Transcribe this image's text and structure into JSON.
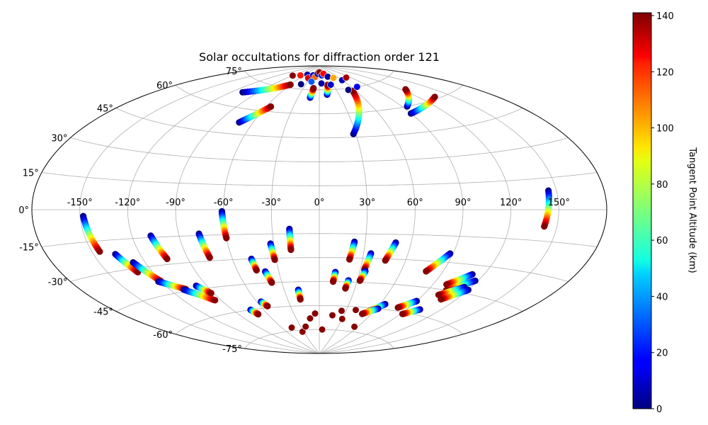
{
  "chart_data": {
    "type": "scatter",
    "projection": "aitoff",
    "title": "Solar occultations for diffraction order 121",
    "grid": true,
    "lon_ticks": [
      -150,
      -120,
      -90,
      -60,
      -30,
      0,
      30,
      60,
      90,
      120,
      150
    ],
    "lon_tick_labels": [
      "-150°",
      "-120°",
      "-90°",
      "-60°",
      "-30°",
      "0°",
      "30°",
      "60°",
      "90°",
      "120°",
      "150°"
    ],
    "lat_ticks": [
      75,
      60,
      45,
      30,
      15,
      0,
      -15,
      -30,
      -45,
      -60,
      -75
    ],
    "lat_tick_labels": [
      "75°",
      "60°",
      "45°",
      "30°",
      "15°",
      "0°",
      "-15°",
      "-30°",
      "-45°",
      "-60°",
      "-75°"
    ],
    "colorbar": {
      "label": "Tangent Point Altitude (km)",
      "min": 0,
      "max": 141,
      "ticks": [
        0,
        20,
        40,
        60,
        80,
        100,
        120,
        140
      ],
      "tick_labels": [
        "0",
        "20",
        "40",
        "60",
        "80",
        "100",
        "120",
        "140"
      ],
      "colormap": "jet"
    },
    "tracks": [
      {
        "lon": [
          -148,
          -145
        ],
        "lat": [
          -3,
          -20
        ],
        "alt": [
          0,
          140
        ]
      },
      {
        "lon": [
          -136,
          -130
        ],
        "lat": [
          -22,
          -32
        ],
        "alt": [
          0,
          140
        ]
      },
      {
        "lon": [
          -128,
          -120
        ],
        "lat": [
          -27,
          -38
        ],
        "alt": [
          0,
          140
        ]
      },
      {
        "lon": [
          -122,
          -108
        ],
        "lat": [
          -38,
          -44
        ],
        "alt": [
          0,
          140
        ]
      },
      {
        "lon": [
          -110,
          -95
        ],
        "lat": [
          -44,
          -52
        ],
        "alt": [
          0,
          140
        ]
      },
      {
        "lon": [
          -98,
          -92
        ],
        "lat": [
          -43,
          -48
        ],
        "alt": [
          0,
          140
        ]
      },
      {
        "lon": [
          -108,
          -104
        ],
        "lat": [
          -14,
          -27
        ],
        "alt": [
          0,
          140
        ]
      },
      {
        "lon": [
          -77,
          -75
        ],
        "lat": [
          -14,
          -28
        ],
        "alt": [
          0,
          140
        ]
      },
      {
        "lon": [
          -61,
          -60
        ],
        "lat": [
          -1,
          -17
        ],
        "alt": [
          0,
          140
        ]
      },
      {
        "lon": [
          -73,
          -70
        ],
        "lat": [
          -60,
          -63
        ],
        "alt": [
          0,
          140
        ]
      },
      {
        "lon": [
          -56,
          -53
        ],
        "lat": [
          -56,
          -59
        ],
        "alt": [
          0,
          140
        ]
      },
      {
        "lon": [
          -47,
          -46
        ],
        "lat": [
          -30,
          -37
        ],
        "alt": [
          0,
          140
        ]
      },
      {
        "lon": [
          -40,
          -38
        ],
        "lat": [
          -38,
          -45
        ],
        "alt": [
          0,
          140
        ]
      },
      {
        "lon": [
          -32,
          -31
        ],
        "lat": [
          -21,
          -31
        ],
        "alt": [
          0,
          140
        ]
      },
      {
        "lon": [
          -19,
          -19
        ],
        "lat": [
          -12,
          -25
        ],
        "alt": [
          0,
          140
        ]
      },
      {
        "lon": [
          -18,
          -18
        ],
        "lat": [
          -50,
          -56
        ],
        "alt": [
          0,
          140
        ]
      },
      {
        "lon": [
          23,
          21
        ],
        "lat": [
          -20,
          -31
        ],
        "alt": [
          0,
          140
        ]
      },
      {
        "lon": [
          12,
          11
        ],
        "lat": [
          -39,
          -45
        ],
        "alt": [
          0,
          140
        ]
      },
      {
        "lon": [
          23,
          22
        ],
        "lat": [
          -44,
          -49
        ],
        "alt": [
          0,
          140
        ]
      },
      {
        "lon": [
          35,
          33
        ],
        "lat": [
          -27,
          -37
        ],
        "alt": [
          0,
          140
        ]
      },
      {
        "lon": [
          34,
          32
        ],
        "lat": [
          -38,
          -44
        ],
        "alt": [
          0,
          140
        ]
      },
      {
        "lon": [
          50,
          46
        ],
        "lat": [
          -20,
          -31
        ],
        "alt": [
          0,
          140
        ]
      },
      {
        "lon": [
          88,
          78
        ],
        "lat": [
          -25,
          -36
        ],
        "alt": [
          0,
          140
        ]
      },
      {
        "lon": [
          112,
          100
        ],
        "lat": [
          -35,
          -42
        ],
        "alt": [
          0,
          140
        ]
      },
      {
        "lon": [
          118,
          104
        ],
        "lat": [
          -38,
          -45
        ],
        "alt": [
          0,
          140
        ]
      },
      {
        "lon": [
          115,
          102
        ],
        "lat": [
          -42,
          -48
        ],
        "alt": [
          0,
          140
        ]
      },
      {
        "lon": [
          120,
          108
        ],
        "lat": [
          -43,
          -50
        ],
        "alt": [
          0,
          140
        ]
      },
      {
        "lon": [
          90,
          80
        ],
        "lat": [
          -53,
          -58
        ],
        "alt": [
          0,
          140
        ]
      },
      {
        "lon": [
          102,
          92
        ],
        "lat": [
          -57,
          -61
        ],
        "alt": [
          0,
          140
        ]
      },
      {
        "lon": [
          65,
          55
        ],
        "lat": [
          -57,
          -62
        ],
        "alt": [
          0,
          140
        ]
      },
      {
        "lon": [
          62,
          50
        ],
        "lat": [
          -60,
          -64
        ],
        "alt": [
          0,
          140
        ]
      },
      {
        "lon": [
          145,
          142
        ],
        "lat": [
          9,
          -8
        ],
        "alt": [
          0,
          140
        ]
      },
      {
        "lon": [
          -108,
          -60
        ],
        "lat": [
          68,
          77
        ],
        "alt": [
          0,
          140
        ]
      },
      {
        "lon": [
          -72,
          -55
        ],
        "lat": [
          52,
          63
        ],
        "alt": [
          0,
          140
        ]
      },
      {
        "lon": [
          -13,
          -11
        ],
        "lat": [
          70,
          76
        ],
        "alt": [
          0,
          140
        ]
      },
      {
        "lon": [
          12,
          18
        ],
        "lat": [
          72,
          78
        ],
        "alt": [
          0,
          140
        ]
      },
      {
        "lon": [
          28,
          55
        ],
        "lat": [
          47,
          73
        ],
        "alt": [
          0,
          140
        ]
      },
      {
        "lon": [
          95,
          125
        ],
        "lat": [
          60,
          68
        ],
        "alt": [
          0,
          140
        ]
      },
      {
        "lon": [
          90,
          135
        ],
        "lat": [
          56,
          61
        ],
        "alt": [
          0,
          140
        ]
      }
    ],
    "points": [
      {
        "lon": -90,
        "lat": 82,
        "alt": 140
      },
      {
        "lon": -70,
        "lat": 83,
        "alt": 120
      },
      {
        "lon": -50,
        "lat": 84,
        "alt": 5
      },
      {
        "lon": -35,
        "lat": 82,
        "alt": 130
      },
      {
        "lon": -25,
        "lat": 84,
        "alt": 10
      },
      {
        "lon": -15,
        "lat": 83,
        "alt": 110
      },
      {
        "lon": -8,
        "lat": 85,
        "alt": 0
      },
      {
        "lon": 0,
        "lat": 86,
        "alt": 140
      },
      {
        "lon": 10,
        "lat": 84,
        "alt": 20
      },
      {
        "lon": 20,
        "lat": 85,
        "alt": 125
      },
      {
        "lon": 30,
        "lat": 83,
        "alt": 5
      },
      {
        "lon": 45,
        "lat": 82,
        "alt": 100
      },
      {
        "lon": 60,
        "lat": 80,
        "alt": 8
      },
      {
        "lon": 80,
        "lat": 81,
        "alt": 135
      },
      {
        "lon": -40,
        "lat": 78,
        "alt": 0
      },
      {
        "lon": -20,
        "lat": 80,
        "alt": 30
      },
      {
        "lon": 5,
        "lat": 79,
        "alt": 5
      },
      {
        "lon": 25,
        "lat": 78,
        "alt": 10
      },
      {
        "lon": 50,
        "lat": 74,
        "alt": 0
      },
      {
        "lon": 70,
        "lat": 75,
        "alt": 15
      },
      {
        "lon": -45,
        "lat": -73,
        "alt": 140
      },
      {
        "lon": -32,
        "lat": -76,
        "alt": 140
      },
      {
        "lon": -22,
        "lat": -73,
        "alt": 140
      },
      {
        "lon": -12,
        "lat": -68,
        "alt": 140
      },
      {
        "lon": -5,
        "lat": -65,
        "alt": 140
      },
      {
        "lon": 5,
        "lat": -75,
        "alt": 140
      },
      {
        "lon": 16,
        "lat": -66,
        "alt": 140
      },
      {
        "lon": 25,
        "lat": -63,
        "alt": 140
      },
      {
        "lon": 30,
        "lat": -68,
        "alt": 140
      },
      {
        "lon": 55,
        "lat": -72,
        "alt": 140
      },
      {
        "lon": 40,
        "lat": -62,
        "alt": 140
      }
    ]
  }
}
